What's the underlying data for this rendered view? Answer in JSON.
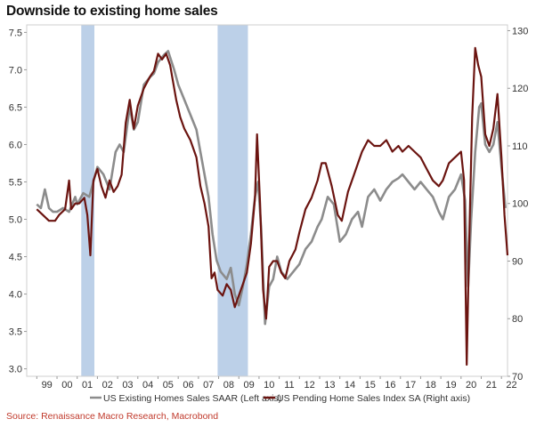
{
  "title": "Downside to existing home sales",
  "source": "Source: Renaissance Macro Research, Macrobond",
  "chart_data": {
    "type": "line",
    "xlim": [
      1998.5,
      2022.3
    ],
    "ylim_left": [
      2.9,
      7.6
    ],
    "ylim_right": [
      70,
      131
    ],
    "left_ticks": [
      "3.0",
      "3.5",
      "4.0",
      "4.5",
      "5.0",
      "5.5",
      "6.0",
      "6.5",
      "7.0",
      "7.5"
    ],
    "right_ticks": [
      "70",
      "80",
      "90",
      "100",
      "110",
      "120",
      "130"
    ],
    "x_tick_labels": [
      "99",
      "00",
      "01",
      "02",
      "03",
      "04",
      "05",
      "06",
      "07",
      "08",
      "09",
      "10",
      "11",
      "12",
      "13",
      "14",
      "15",
      "16",
      "17",
      "18",
      "19",
      "20",
      "21",
      "22"
    ],
    "recessions": [
      [
        2001.2,
        2001.85
      ],
      [
        2007.95,
        2009.45
      ]
    ],
    "colors": {
      "existing": "#8c8c8c",
      "pending": "#6b1410",
      "recession": "#bcd0e8"
    },
    "series": [
      {
        "name": "US Existing Homes Sales SAAR (Left axis)",
        "axis": "left",
        "points": [
          [
            1999.0,
            5.2
          ],
          [
            1999.2,
            5.15
          ],
          [
            1999.4,
            5.4
          ],
          [
            1999.6,
            5.15
          ],
          [
            1999.8,
            5.1
          ],
          [
            2000.0,
            5.1
          ],
          [
            2000.3,
            5.15
          ],
          [
            2000.6,
            5.1
          ],
          [
            2000.9,
            5.3
          ],
          [
            2001.0,
            5.2
          ],
          [
            2001.3,
            5.35
          ],
          [
            2001.6,
            5.3
          ],
          [
            2001.8,
            5.5
          ],
          [
            2002.0,
            5.7
          ],
          [
            2002.3,
            5.6
          ],
          [
            2002.6,
            5.4
          ],
          [
            2002.9,
            5.9
          ],
          [
            2003.1,
            6.0
          ],
          [
            2003.3,
            5.9
          ],
          [
            2003.6,
            6.5
          ],
          [
            2003.8,
            6.2
          ],
          [
            2004.0,
            6.3
          ],
          [
            2004.3,
            6.8
          ],
          [
            2004.6,
            6.9
          ],
          [
            2004.8,
            6.95
          ],
          [
            2005.0,
            7.1
          ],
          [
            2005.3,
            7.2
          ],
          [
            2005.5,
            7.25
          ],
          [
            2005.8,
            7.0
          ],
          [
            2006.0,
            6.8
          ],
          [
            2006.3,
            6.6
          ],
          [
            2006.6,
            6.4
          ],
          [
            2006.9,
            6.2
          ],
          [
            2007.1,
            5.9
          ],
          [
            2007.3,
            5.6
          ],
          [
            2007.5,
            5.3
          ],
          [
            2007.7,
            4.8
          ],
          [
            2007.9,
            4.45
          ],
          [
            2008.1,
            4.3
          ],
          [
            2008.4,
            4.2
          ],
          [
            2008.6,
            4.35
          ],
          [
            2008.8,
            4.0
          ],
          [
            2009.0,
            3.85
          ],
          [
            2009.2,
            4.1
          ],
          [
            2009.4,
            4.4
          ],
          [
            2009.6,
            4.8
          ],
          [
            2009.8,
            5.3
          ],
          [
            2009.95,
            5.5
          ],
          [
            2010.1,
            4.9
          ],
          [
            2010.3,
            3.6
          ],
          [
            2010.5,
            4.1
          ],
          [
            2010.7,
            4.2
          ],
          [
            2010.9,
            4.5
          ],
          [
            2011.1,
            4.3
          ],
          [
            2011.4,
            4.2
          ],
          [
            2011.7,
            4.3
          ],
          [
            2012.0,
            4.4
          ],
          [
            2012.3,
            4.6
          ],
          [
            2012.6,
            4.7
          ],
          [
            2012.9,
            4.9
          ],
          [
            2013.1,
            5.0
          ],
          [
            2013.4,
            5.3
          ],
          [
            2013.7,
            5.2
          ],
          [
            2014.0,
            4.7
          ],
          [
            2014.3,
            4.8
          ],
          [
            2014.6,
            5.0
          ],
          [
            2014.9,
            5.1
          ],
          [
            2015.1,
            4.9
          ],
          [
            2015.4,
            5.3
          ],
          [
            2015.7,
            5.4
          ],
          [
            2016.0,
            5.25
          ],
          [
            2016.3,
            5.4
          ],
          [
            2016.6,
            5.5
          ],
          [
            2016.9,
            5.55
          ],
          [
            2017.1,
            5.6
          ],
          [
            2017.4,
            5.5
          ],
          [
            2017.7,
            5.4
          ],
          [
            2018.0,
            5.5
          ],
          [
            2018.3,
            5.4
          ],
          [
            2018.6,
            5.3
          ],
          [
            2018.9,
            5.1
          ],
          [
            2019.1,
            5.0
          ],
          [
            2019.4,
            5.3
          ],
          [
            2019.7,
            5.4
          ],
          [
            2020.0,
            5.6
          ],
          [
            2020.2,
            5.25
          ],
          [
            2020.35,
            4.1
          ],
          [
            2020.5,
            5.0
          ],
          [
            2020.7,
            5.9
          ],
          [
            2020.9,
            6.5
          ],
          [
            2021.0,
            6.55
          ],
          [
            2021.2,
            6.0
          ],
          [
            2021.4,
            5.9
          ],
          [
            2021.6,
            6.0
          ],
          [
            2021.8,
            6.3
          ],
          [
            2022.0,
            5.7
          ],
          [
            2022.2,
            5.15
          ]
        ]
      },
      {
        "name": "US Pending Home Sales Index SA (Right axis)",
        "axis": "right",
        "points": [
          [
            1999.0,
            99
          ],
          [
            1999.3,
            98
          ],
          [
            1999.6,
            97
          ],
          [
            1999.9,
            97
          ],
          [
            2000.1,
            98
          ],
          [
            2000.4,
            99
          ],
          [
            2000.6,
            104
          ],
          [
            2000.7,
            99
          ],
          [
            2000.9,
            100
          ],
          [
            2001.1,
            100
          ],
          [
            2001.35,
            101
          ],
          [
            2001.5,
            98
          ],
          [
            2001.65,
            91
          ],
          [
            2001.8,
            104
          ],
          [
            2002.0,
            106
          ],
          [
            2002.2,
            103
          ],
          [
            2002.4,
            101
          ],
          [
            2002.6,
            104
          ],
          [
            2002.8,
            102
          ],
          [
            2003.0,
            103
          ],
          [
            2003.2,
            105
          ],
          [
            2003.4,
            114
          ],
          [
            2003.6,
            118
          ],
          [
            2003.8,
            113
          ],
          [
            2004.0,
            117
          ],
          [
            2004.3,
            120
          ],
          [
            2004.6,
            122
          ],
          [
            2004.8,
            123
          ],
          [
            2005.0,
            126
          ],
          [
            2005.2,
            125
          ],
          [
            2005.4,
            126
          ],
          [
            2005.6,
            124
          ],
          [
            2005.9,
            118
          ],
          [
            2006.1,
            115
          ],
          [
            2006.3,
            113
          ],
          [
            2006.6,
            111
          ],
          [
            2006.9,
            108
          ],
          [
            2007.1,
            103
          ],
          [
            2007.3,
            100
          ],
          [
            2007.5,
            96
          ],
          [
            2007.65,
            87
          ],
          [
            2007.8,
            88
          ],
          [
            2007.95,
            85
          ],
          [
            2008.2,
            84
          ],
          [
            2008.4,
            86
          ],
          [
            2008.6,
            85
          ],
          [
            2008.8,
            82
          ],
          [
            2009.0,
            84
          ],
          [
            2009.2,
            86
          ],
          [
            2009.4,
            88
          ],
          [
            2009.6,
            93
          ],
          [
            2009.8,
            101
          ],
          [
            2009.9,
            112
          ],
          [
            2010.05,
            100
          ],
          [
            2010.2,
            85
          ],
          [
            2010.35,
            80
          ],
          [
            2010.5,
            89
          ],
          [
            2010.7,
            90
          ],
          [
            2010.9,
            90
          ],
          [
            2011.1,
            88
          ],
          [
            2011.3,
            87
          ],
          [
            2011.5,
            90
          ],
          [
            2011.8,
            92
          ],
          [
            2012.0,
            95
          ],
          [
            2012.3,
            99
          ],
          [
            2012.6,
            101
          ],
          [
            2012.9,
            104
          ],
          [
            2013.1,
            107
          ],
          [
            2013.3,
            107
          ],
          [
            2013.6,
            103
          ],
          [
            2013.9,
            98
          ],
          [
            2014.1,
            97
          ],
          [
            2014.4,
            102
          ],
          [
            2014.7,
            105
          ],
          [
            2014.9,
            107
          ],
          [
            2015.1,
            109
          ],
          [
            2015.4,
            111
          ],
          [
            2015.7,
            110
          ],
          [
            2016.0,
            110
          ],
          [
            2016.3,
            111
          ],
          [
            2016.6,
            109
          ],
          [
            2016.9,
            110
          ],
          [
            2017.1,
            109
          ],
          [
            2017.4,
            110
          ],
          [
            2017.7,
            109
          ],
          [
            2018.0,
            108
          ],
          [
            2018.3,
            106
          ],
          [
            2018.6,
            104
          ],
          [
            2018.9,
            103
          ],
          [
            2019.1,
            104
          ],
          [
            2019.4,
            107
          ],
          [
            2019.7,
            108
          ],
          [
            2020.0,
            109
          ],
          [
            2020.15,
            104
          ],
          [
            2020.28,
            72
          ],
          [
            2020.4,
            93
          ],
          [
            2020.55,
            115
          ],
          [
            2020.7,
            127
          ],
          [
            2020.85,
            124
          ],
          [
            2021.0,
            122
          ],
          [
            2021.2,
            112
          ],
          [
            2021.4,
            110
          ],
          [
            2021.6,
            113
          ],
          [
            2021.8,
            119
          ],
          [
            2022.0,
            108
          ],
          [
            2022.15,
            98
          ],
          [
            2022.3,
            91
          ]
        ]
      }
    ]
  }
}
